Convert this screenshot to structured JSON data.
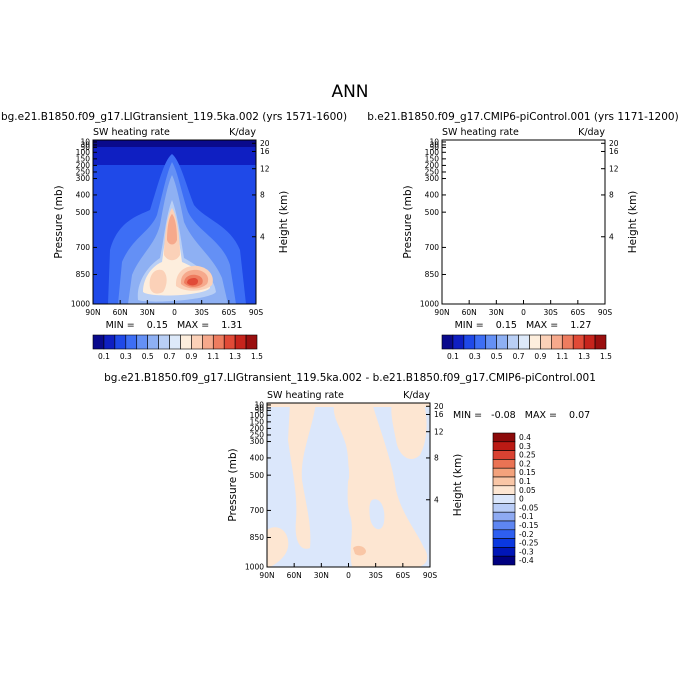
{
  "figure": {
    "title": "ANN"
  },
  "colors": {
    "levels": [
      "#0a0a8c",
      "#0f1fc2",
      "#1f49e8",
      "#3d6ef5",
      "#6490f5",
      "#8eb0f3",
      "#b9cff5",
      "#dde9f9",
      "#fdeedd",
      "#fbd1b8",
      "#f6a98c",
      "#ee7c5f",
      "#e14a37",
      "#c7241c",
      "#9a0f0f"
    ],
    "diff_levels": [
      "#000080",
      "#0016b8",
      "#0a38e0",
      "#2e5ff0",
      "#5e86f2",
      "#8eaaf2",
      "#b9cdf7",
      "#dbe7fb",
      "#fde6d2",
      "#f9c6a6",
      "#f3a27c",
      "#ea7354",
      "#d94232",
      "#bb1a14",
      "#8c0a0a"
    ]
  },
  "chart_data": [
    {
      "type": "contour",
      "title": "bg.e21.B1850.f09_g17.LIGtransient_119.5ka.002 (yrs 1571-1600)",
      "subtitle_left": "SW heating rate",
      "subtitle_right": "K/day",
      "ylabel": "Pressure (mb)",
      "ylabel_right": "Height (km)",
      "x_ticks": [
        "90N",
        "60N",
        "30N",
        "0",
        "30S",
        "60S",
        "90S"
      ],
      "y_ticks": [
        "10",
        "30",
        "50",
        "100",
        "150",
        "200",
        "250",
        "300",
        "400",
        "500",
        "700",
        "850",
        "1000"
      ],
      "y_right_ticks": [
        "20",
        "16",
        "12",
        "8",
        "4"
      ],
      "stats": "MIN =    0.15   MAX =    1.31",
      "min": 0.15,
      "max": 1.31,
      "colorbar_labels": [
        "0.1",
        "0.3",
        "0.5",
        "0.7",
        "0.9",
        "1.1",
        "1.3",
        "1.5"
      ]
    },
    {
      "type": "contour",
      "title": "b.e21.B1850.f09_g17.CMIP6-piControl.001 (yrs 1171-1200)",
      "subtitle_left": "SW heating rate",
      "subtitle_right": "K/day",
      "ylabel": "Pressure (mb)",
      "ylabel_right": "Height (km)",
      "x_ticks": [
        "90N",
        "60N",
        "30N",
        "0",
        "30S",
        "60S",
        "90S"
      ],
      "y_ticks": [
        "10",
        "30",
        "50",
        "100",
        "150",
        "200",
        "250",
        "300",
        "400",
        "500",
        "700",
        "850",
        "1000"
      ],
      "y_right_ticks": [
        "20",
        "16",
        "12",
        "8",
        "4"
      ],
      "stats": "MIN =    0.15   MAX =    1.27",
      "min": 0.15,
      "max": 1.27,
      "colorbar_labels": [
        "0.1",
        "0.3",
        "0.5",
        "0.7",
        "0.9",
        "1.1",
        "1.3",
        "1.5"
      ]
    },
    {
      "type": "contour",
      "title": "bg.e21.B1850.f09_g17.LIGtransient_119.5ka.002 - b.e21.B1850.f09_g17.CMIP6-piControl.001",
      "subtitle_left": "SW heating rate",
      "subtitle_right": "K/day",
      "ylabel": "Pressure (mb)",
      "ylabel_right": "Height (km)",
      "x_ticks": [
        "90N",
        "60N",
        "30N",
        "0",
        "30S",
        "60S",
        "90S"
      ],
      "y_ticks": [
        "10",
        "30",
        "50",
        "100",
        "150",
        "200",
        "250",
        "300",
        "400",
        "500",
        "700",
        "850",
        "1000"
      ],
      "y_right_ticks": [
        "20",
        "16",
        "12",
        "8",
        "4"
      ],
      "stats": "MIN =   -0.08   MAX =    0.07",
      "min": -0.08,
      "max": 0.07,
      "colorbar_labels": [
        "0.4",
        "0.3",
        "0.25",
        "0.2",
        "0.15",
        "0.1",
        "0.05",
        "0",
        "-0.05",
        "-0.1",
        "-0.15",
        "-0.2",
        "-0.25",
        "-0.3",
        "-0.4"
      ]
    }
  ]
}
